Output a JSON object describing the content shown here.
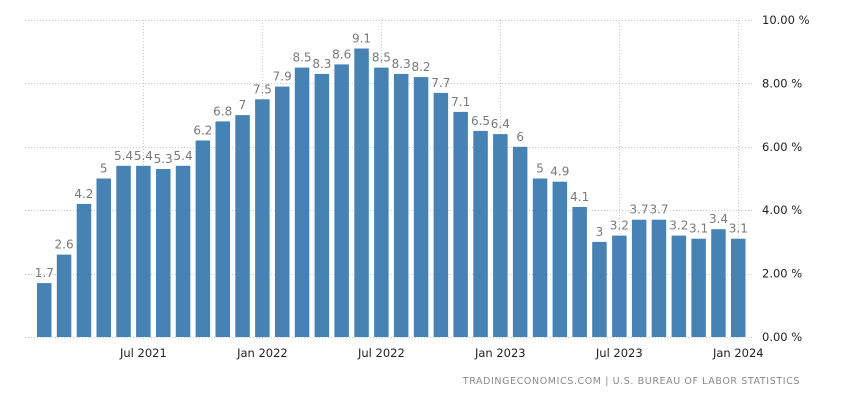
{
  "source": "TRADINGECONOMICS.COM | U.S. BUREAU OF LABOR STATISTICS",
  "chart_data": {
    "type": "bar",
    "title": "",
    "xlabel": "",
    "ylabel": "",
    "ylim": [
      0,
      10
    ],
    "grid": true,
    "legend": "none",
    "bar_color": "#4682b4",
    "categories": [
      "Feb 2021",
      "Mar 2021",
      "Apr 2021",
      "May 2021",
      "Jun 2021",
      "Jul 2021",
      "Aug 2021",
      "Sep 2021",
      "Oct 2021",
      "Nov 2021",
      "Dec 2021",
      "Jan 2022",
      "Feb 2022",
      "Mar 2022",
      "Apr 2022",
      "May 2022",
      "Jun 2022",
      "Jul 2022",
      "Aug 2022",
      "Sep 2022",
      "Oct 2022",
      "Nov 2022",
      "Dec 2022",
      "Jan 2023",
      "Feb 2023",
      "Mar 2023",
      "Apr 2023",
      "May 2023",
      "Jun 2023",
      "Jul 2023",
      "Aug 2023",
      "Sep 2023",
      "Oct 2023",
      "Nov 2023",
      "Dec 2023",
      "Jan 2024"
    ],
    "values": [
      1.7,
      2.6,
      4.2,
      5,
      5.4,
      5.4,
      5.3,
      5.4,
      6.2,
      6.8,
      7,
      7.5,
      7.9,
      8.5,
      8.3,
      8.6,
      9.1,
      8.5,
      8.3,
      8.2,
      7.7,
      7.1,
      6.5,
      6.4,
      6,
      5,
      4.9,
      4.1,
      3,
      3.2,
      3.7,
      3.7,
      3.2,
      3.1,
      3.4,
      3.1
    ],
    "y_ticks": [
      {
        "value": 0,
        "label": "0.00 %"
      },
      {
        "value": 2,
        "label": "2.00 %"
      },
      {
        "value": 4,
        "label": "4.00 %"
      },
      {
        "value": 6,
        "label": "6.00 %"
      },
      {
        "value": 8,
        "label": "8.00 %"
      },
      {
        "value": 10,
        "label": "10.00 %"
      }
    ],
    "x_ticks": [
      {
        "index": 5,
        "label": "Jul 2021"
      },
      {
        "index": 11,
        "label": "Jan 2022"
      },
      {
        "index": 17,
        "label": "Jul 2022"
      },
      {
        "index": 23,
        "label": "Jan 2023"
      },
      {
        "index": 29,
        "label": "Jul 2023"
      },
      {
        "index": 35,
        "label": "Jan 2024"
      }
    ]
  }
}
